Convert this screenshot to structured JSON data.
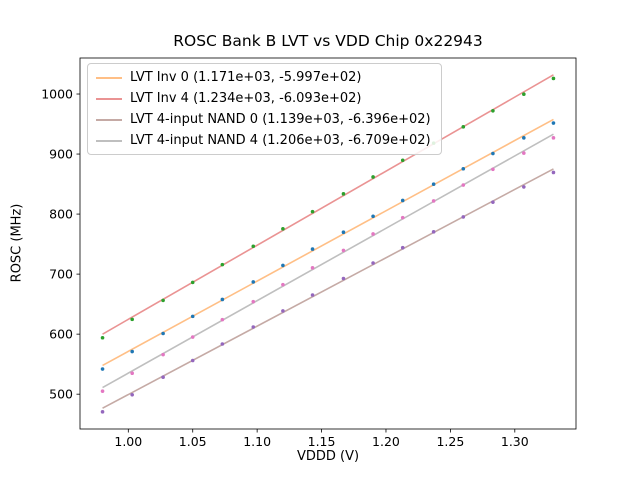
{
  "chart_data": {
    "type": "scatter",
    "title": "ROSC Bank B LVT vs VDD Chip 0x22943",
    "xlabel": "VDDD (V)",
    "ylabel": "ROSC (MHz)",
    "xlim": [
      0.9625,
      1.3475
    ],
    "ylim": [
      442,
      1060
    ],
    "xticks": [
      1.0,
      1.05,
      1.1,
      1.15,
      1.2,
      1.25,
      1.3
    ],
    "xtick_labels": [
      "1.00",
      "1.05",
      "1.10",
      "1.15",
      "1.20",
      "1.25",
      "1.30"
    ],
    "yticks": [
      500,
      600,
      700,
      800,
      900,
      1000
    ],
    "ytick_labels": [
      "500",
      "600",
      "700",
      "800",
      "900",
      "1000"
    ],
    "grid": false,
    "legend_position": "upper left",
    "x": [
      0.98,
      1.003,
      1.027,
      1.05,
      1.073,
      1.097,
      1.12,
      1.143,
      1.167,
      1.19,
      1.213,
      1.237,
      1.26,
      1.283,
      1.307,
      1.33
    ],
    "series": [
      {
        "name": "LVT Inv 0 (1.171e+03, -5.997e+02)",
        "fit": {
          "slope": 1171.0,
          "intercept": -599.7
        },
        "line_color": "#ffbf86",
        "point_color": "#1f77b4",
        "values": [
          541.9,
          571.0,
          601.1,
          629.6,
          657.8,
          686.9,
          714.5,
          741.7,
          769.8,
          796.4,
          822.7,
          849.8,
          875.5,
          900.9,
          927.0,
          951.7
        ]
      },
      {
        "name": "LVT Inv 4 (1.234e+03, -6.093e+02)",
        "fit": {
          "slope": 1234.0,
          "intercept": -609.3
        },
        "line_color": "#ea9393",
        "point_color": "#2ca02c",
        "values": [
          594.0,
          624.6,
          656.2,
          686.2,
          715.8,
          746.4,
          775.4,
          804.1,
          833.7,
          861.8,
          889.6,
          918.2,
          945.3,
          972.1,
          999.7,
          1025.9
        ]
      },
      {
        "name": "LVT 4-input NAND 0 (1.139e+03, -6.396e+02)",
        "fit": {
          "slope": 1139.0,
          "intercept": -639.6
        },
        "line_color": "#c5aaa5",
        "point_color": "#9467bd",
        "values": [
          470.6,
          499.0,
          528.3,
          556.1,
          583.6,
          611.9,
          638.7,
          665.2,
          692.6,
          718.5,
          744.0,
          770.4,
          795.3,
          819.9,
          845.3,
          869.3
        ]
      },
      {
        "name": "LVT 4-input NAND 4 (1.206e+03, -6.709e+02)",
        "fit": {
          "slope": 1206.0,
          "intercept": -670.9
        },
        "line_color": "#bfbfbf",
        "point_color": "#e377c2",
        "values": [
          505.0,
          534.9,
          565.8,
          595.2,
          624.2,
          654.1,
          682.5,
          710.5,
          739.5,
          766.9,
          794.0,
          821.9,
          848.4,
          874.6,
          901.6,
          927.0
        ]
      }
    ]
  }
}
